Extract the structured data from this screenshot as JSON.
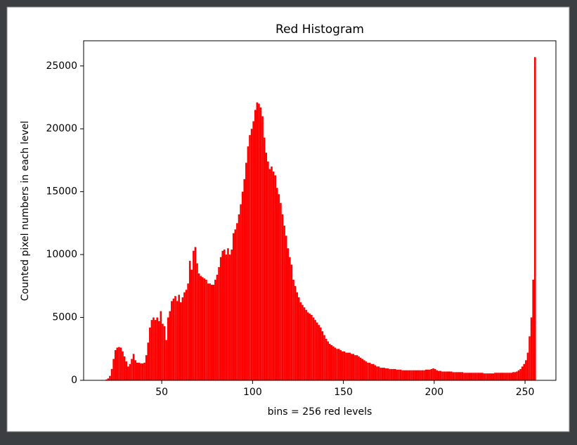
{
  "chart_data": {
    "type": "histogram",
    "title": "Red Histogram",
    "x_label": "bins = 256 red levels",
    "y_label": "Counted pixel numbers in each level",
    "color": "#ff0000",
    "bins": [
      19,
      20,
      21,
      22,
      23,
      24,
      25,
      26,
      27,
      28,
      29,
      30,
      31,
      32,
      33,
      34,
      35,
      36,
      37,
      38,
      39,
      40,
      41,
      42,
      43,
      44,
      45,
      46,
      47,
      48,
      49,
      50,
      51,
      52,
      53,
      54,
      55,
      56,
      57,
      58,
      59,
      60,
      61,
      62,
      63,
      64,
      65,
      66,
      67,
      68,
      69,
      70,
      71,
      72,
      73,
      74,
      75,
      76,
      77,
      78,
      79,
      80,
      81,
      82,
      83,
      84,
      85,
      86,
      87,
      88,
      89,
      90,
      91,
      92,
      93,
      94,
      95,
      96,
      97,
      98,
      99,
      100,
      101,
      102,
      103,
      104,
      105,
      106,
      107,
      108,
      109,
      110,
      111,
      112,
      113,
      114,
      115,
      116,
      117,
      118,
      119,
      120,
      121,
      122,
      123,
      124,
      125,
      126,
      127,
      128,
      129,
      130,
      131,
      132,
      133,
      134,
      135,
      136,
      137,
      138,
      139,
      140,
      141,
      142,
      143,
      144,
      145,
      146,
      147,
      148,
      149,
      150,
      151,
      152,
      153,
      154,
      155,
      156,
      157,
      158,
      159,
      160,
      161,
      162,
      163,
      164,
      165,
      166,
      167,
      168,
      169,
      170,
      171,
      172,
      173,
      174,
      175,
      176,
      177,
      178,
      179,
      180,
      181,
      182,
      183,
      184,
      185,
      186,
      187,
      188,
      189,
      190,
      191,
      192,
      193,
      194,
      195,
      196,
      197,
      198,
      199,
      200,
      201,
      202,
      203,
      204,
      205,
      206,
      207,
      208,
      209,
      210,
      211,
      212,
      213,
      214,
      215,
      216,
      217,
      218,
      219,
      220,
      221,
      222,
      223,
      224,
      225,
      226,
      227,
      228,
      229,
      230,
      231,
      232,
      233,
      234,
      235,
      236,
      237,
      238,
      239,
      240,
      241,
      242,
      243,
      244,
      245,
      246,
      247,
      248,
      249,
      250,
      251,
      252,
      253,
      254,
      255,
      256
    ],
    "values": [
      60,
      150,
      350,
      900,
      1700,
      2400,
      2600,
      2650,
      2600,
      2300,
      1900,
      1500,
      1100,
      1300,
      1700,
      2100,
      1600,
      1400,
      1400,
      1350,
      1350,
      1400,
      2000,
      3000,
      4200,
      4800,
      5000,
      4800,
      5000,
      4700,
      5500,
      4500,
      4300,
      3200,
      5000,
      5500,
      6300,
      6500,
      6700,
      6300,
      6800,
      6200,
      6600,
      7000,
      7200,
      7700,
      9500,
      8800,
      10300,
      10600,
      9300,
      8500,
      8300,
      8200,
      8100,
      8000,
      7700,
      7700,
      7600,
      7600,
      8000,
      8400,
      9000,
      9800,
      10300,
      10400,
      10000,
      10500,
      10000,
      10400,
      11700,
      12000,
      12500,
      13200,
      14000,
      15000,
      16000,
      17300,
      18600,
      19500,
      20000,
      20600,
      21500,
      22100,
      22000,
      21700,
      21000,
      19300,
      18100,
      17400,
      16800,
      17000,
      16600,
      16300,
      15300,
      14800,
      14100,
      13200,
      12300,
      11500,
      10500,
      9800,
      9200,
      8000,
      7500,
      7000,
      6600,
      6200,
      6000,
      5800,
      5600,
      5400,
      5300,
      5200,
      5000,
      4800,
      4600,
      4400,
      4200,
      3900,
      3600,
      3300,
      3100,
      2900,
      2800,
      2700,
      2600,
      2500,
      2500,
      2400,
      2300,
      2300,
      2200,
      2200,
      2200,
      2100,
      2100,
      2000,
      2000,
      1900,
      1800,
      1700,
      1600,
      1500,
      1400,
      1400,
      1300,
      1300,
      1200,
      1100,
      1100,
      1000,
      1000,
      1000,
      950,
      950,
      900,
      900,
      900,
      900,
      850,
      850,
      850,
      800,
      800,
      800,
      800,
      800,
      800,
      800,
      800,
      800,
      800,
      800,
      800,
      800,
      850,
      850,
      850,
      900,
      950,
      900,
      800,
      750,
      750,
      700,
      700,
      700,
      700,
      700,
      700,
      650,
      650,
      650,
      650,
      650,
      650,
      600,
      600,
      600,
      600,
      600,
      600,
      600,
      600,
      600,
      600,
      600,
      550,
      550,
      550,
      550,
      550,
      550,
      600,
      600,
      600,
      600,
      600,
      600,
      600,
      600,
      600,
      600,
      650,
      650,
      700,
      800,
      900,
      1100,
      1300,
      1600,
      2200,
      3500,
      5000,
      8000,
      25700
    ],
    "xlim": [
      7,
      267
    ],
    "ylim": [
      0,
      27000
    ],
    "xticks": [
      50,
      100,
      150,
      200,
      250
    ],
    "yticks": [
      0,
      5000,
      10000,
      15000,
      20000,
      25000
    ]
  }
}
